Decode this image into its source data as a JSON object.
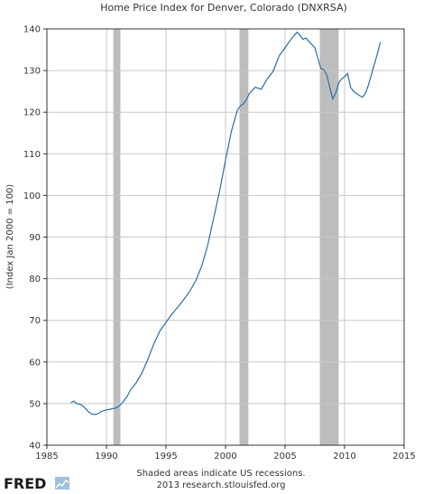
{
  "chart_data": {
    "type": "line",
    "title": "Home Price Index for Denver, Colorado (DNXRSA)",
    "ylabel": "(Index Jan 2000 = 100)",
    "xlabel": "",
    "xlim": [
      1985,
      2015
    ],
    "ylim": [
      40,
      140
    ],
    "x_ticks": [
      1985,
      1990,
      1995,
      2000,
      2005,
      2010,
      2015
    ],
    "y_ticks": [
      40,
      50,
      60,
      70,
      80,
      90,
      100,
      110,
      120,
      130,
      140
    ],
    "grid": true,
    "line_color": "#2a6ea6",
    "recession_color": "#bdbdbd",
    "recessions": [
      {
        "start": 1990.58,
        "end": 1991.17
      },
      {
        "start": 2001.17,
        "end": 2001.92
      },
      {
        "start": 2007.92,
        "end": 2009.5
      }
    ],
    "series": [
      {
        "x": [
          1987.0,
          1987.25,
          1987.5,
          1987.75,
          1988.0,
          1988.25,
          1988.5,
          1988.75,
          1989.0,
          1989.25,
          1989.5,
          1989.75,
          1990.0,
          1990.25,
          1990.5,
          1990.75,
          1991.0,
          1991.25,
          1991.5,
          1991.75,
          1992.0,
          1992.5,
          1993.0,
          1993.5,
          1994.0,
          1994.5,
          1995.0,
          1995.5,
          1996.0,
          1996.5,
          1997.0,
          1997.5,
          1998.0,
          1998.5,
          1999.0,
          1999.5,
          2000.0,
          2000.5,
          2001.0,
          2001.25,
          2001.5,
          2001.75,
          2002.0,
          2002.5,
          2003.0,
          2003.5,
          2004.0,
          2004.5,
          2005.0,
          2005.5,
          2006.0,
          2006.25,
          2006.5,
          2006.75,
          2007.0,
          2007.5,
          2007.75,
          2008.0,
          2008.25,
          2008.5,
          2008.75,
          2009.0,
          2009.25,
          2009.5,
          2009.75,
          2010.0,
          2010.25,
          2010.5,
          2010.75,
          2011.0,
          2011.25,
          2011.5,
          2011.75,
          2012.0,
          2012.25,
          2012.5,
          2012.75,
          2013.0
        ],
        "values": [
          50.2,
          50.6,
          50.0,
          49.9,
          49.5,
          48.8,
          48.0,
          47.5,
          47.4,
          47.5,
          48.0,
          48.3,
          48.5,
          48.6,
          48.8,
          48.9,
          49.3,
          49.9,
          50.8,
          51.8,
          53.2,
          55.0,
          57.5,
          60.8,
          64.5,
          67.5,
          69.5,
          71.5,
          73.2,
          75.0,
          77.0,
          79.5,
          83.0,
          88.0,
          94.5,
          101.0,
          108.5,
          115.5,
          120.5,
          121.5,
          122.0,
          123.0,
          124.5,
          126.0,
          125.5,
          128.0,
          129.8,
          133.5,
          135.5,
          137.5,
          139.2,
          138.5,
          137.5,
          137.8,
          137.0,
          135.5,
          133.0,
          130.5,
          130.2,
          129.0,
          126.0,
          123.2,
          124.5,
          127.0,
          128.0,
          128.5,
          129.3,
          126.0,
          125.0,
          124.5,
          124.0,
          123.6,
          124.5,
          126.5,
          129.0,
          131.5,
          134.0,
          136.8
        ]
      }
    ]
  },
  "footer": {
    "logo": "FRED",
    "logo_icon": "chart-icon",
    "note": "Shaded areas indicate US recessions.",
    "source": "2013 research.stlouisfed.org"
  }
}
